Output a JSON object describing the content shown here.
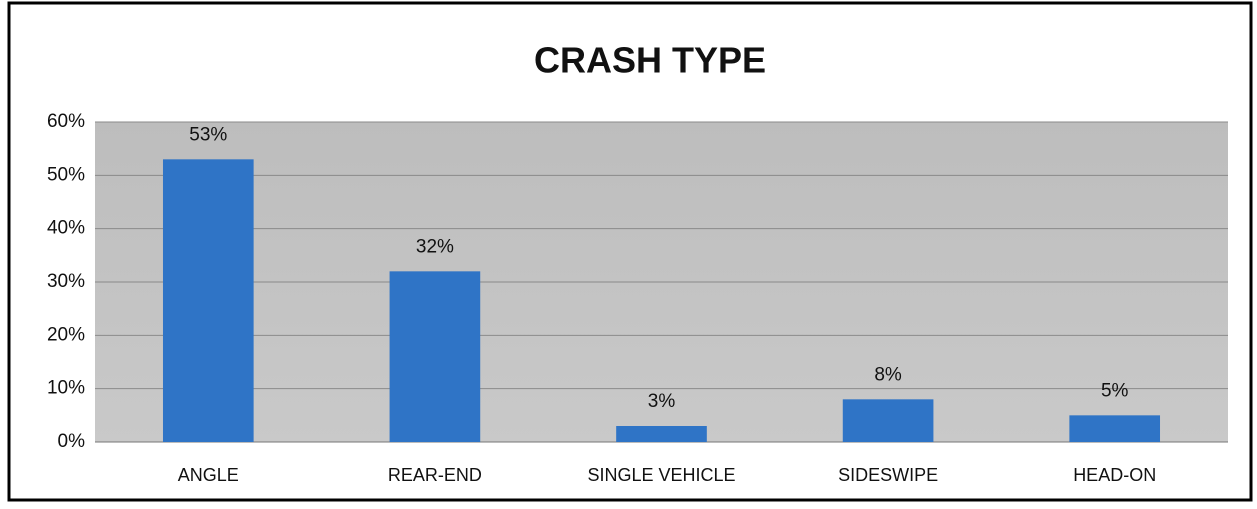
{
  "chart_data": {
    "type": "bar",
    "title": "CRASH TYPE",
    "categories": [
      "ANGLE",
      "REAR-END",
      "SINGLE VEHICLE",
      "SIDESWIPE",
      "HEAD-ON"
    ],
    "values": [
      53,
      32,
      3,
      8,
      5
    ],
    "value_labels": [
      "53%",
      "32%",
      "3%",
      "8%",
      "5%"
    ],
    "color": "#2f74c6",
    "ylim": [
      0,
      60
    ],
    "yticks": [
      {
        "value": 0,
        "label": "0%"
      },
      {
        "value": 10,
        "label": "10%"
      },
      {
        "value": 20,
        "label": "20%"
      },
      {
        "value": 30,
        "label": "30%"
      },
      {
        "value": 40,
        "label": "40%"
      },
      {
        "value": 50,
        "label": "50%"
      },
      {
        "value": 60,
        "label": "60%"
      }
    ],
    "grid": true
  }
}
